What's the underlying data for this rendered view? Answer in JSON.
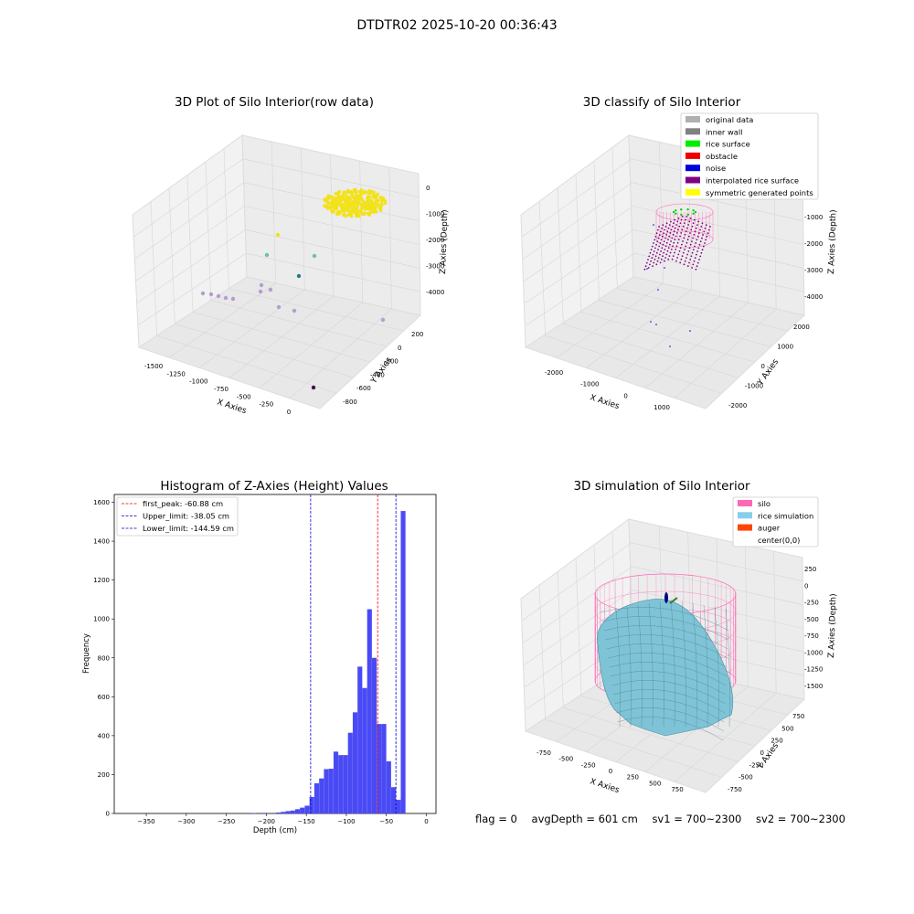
{
  "figure_title": "DTDTR02 2025-10-20 00:36:43",
  "chart_data": [
    {
      "type": "scatter",
      "subtitle": "3D Plot of Silo Interior(row data)",
      "xlabel": "X Axies",
      "ylabel": "Y Axies",
      "zlabel": "Z Axies (Depth)",
      "x_ticks": [
        "-1500",
        "-1250",
        "-1000",
        "-750",
        "-500",
        "-250",
        "0"
      ],
      "y_ticks": [
        "-800",
        "-600",
        "-400",
        "-200",
        "0",
        "200"
      ],
      "z_ticks": [
        "0",
        "-1000",
        "-2000",
        "-3000",
        "-4000"
      ],
      "description_colors": {
        "cluster": "#f2e21c",
        "outliers": [
          "#b79bd1",
          "#6fc0a0",
          "#2a788e",
          "#440154"
        ]
      }
    },
    {
      "type": "scatter",
      "subtitle": "3D classify of Silo Interior",
      "xlabel": "X Axies",
      "ylabel": "Y Axies",
      "zlabel": "Z Axies (Depth)",
      "x_ticks": [
        "-2000",
        "-1000",
        "0",
        "1000"
      ],
      "y_ticks": [
        "-2000",
        "-1000",
        "0",
        "1000",
        "2000"
      ],
      "z_ticks": [
        "0",
        "-1000",
        "-2000",
        "-3000",
        "-4000"
      ],
      "legend": [
        {
          "label": "original data",
          "color": "#b0b0b0"
        },
        {
          "label": "inner wall",
          "color": "#808080"
        },
        {
          "label": "rice surface",
          "color": "#00ee00"
        },
        {
          "label": "obstacle",
          "color": "#ee0000"
        },
        {
          "label": "noise",
          "color": "#0000dd"
        },
        {
          "label": "interpolated rice surface",
          "color": "#800080"
        },
        {
          "label": "symmetric generated points",
          "color": "#ffff00"
        }
      ]
    },
    {
      "type": "bar",
      "subtitle": "Histogram of Z-Axies (Height) Values",
      "xlabel": "Depth (cm)",
      "ylabel": "Frequency",
      "xlim": [
        -390,
        12
      ],
      "ylim": [
        0,
        1640
      ],
      "x_ticks": [
        -350,
        -300,
        -250,
        -200,
        -150,
        -100,
        -50,
        0
      ],
      "y_ticks": [
        0,
        200,
        400,
        600,
        800,
        1000,
        1200,
        1400,
        1600
      ],
      "bin_width": 5.9,
      "bars": [
        {
          "x": -219,
          "value": 2
        },
        {
          "x": -207,
          "value": 3
        },
        {
          "x": -188,
          "value": 5
        },
        {
          "x": -182,
          "value": 8
        },
        {
          "x": -176,
          "value": 12
        },
        {
          "x": -170,
          "value": 15
        },
        {
          "x": -164,
          "value": 22
        },
        {
          "x": -158,
          "value": 30
        },
        {
          "x": -152,
          "value": 40
        },
        {
          "x": -146,
          "value": 85
        },
        {
          "x": -140,
          "value": 155
        },
        {
          "x": -134,
          "value": 180
        },
        {
          "x": -128,
          "value": 228
        },
        {
          "x": -122,
          "value": 230
        },
        {
          "x": -116,
          "value": 318
        },
        {
          "x": -110,
          "value": 300
        },
        {
          "x": -104,
          "value": 300
        },
        {
          "x": -98,
          "value": 415
        },
        {
          "x": -92,
          "value": 520
        },
        {
          "x": -86,
          "value": 755
        },
        {
          "x": -80,
          "value": 645
        },
        {
          "x": -74,
          "value": 1050
        },
        {
          "x": -68,
          "value": 800
        },
        {
          "x": -62,
          "value": 460
        },
        {
          "x": -56,
          "value": 460
        },
        {
          "x": -50,
          "value": 268
        },
        {
          "x": -44,
          "value": 135
        },
        {
          "x": -38,
          "value": 70
        },
        {
          "x": -32,
          "value": 1555
        }
      ],
      "vlines": [
        {
          "label": "first_peak: -60.88 cm",
          "x": -60.88,
          "color": "#ee0000"
        },
        {
          "label": "Upper_limit: -38.05 cm",
          "x": -38.05,
          "color": "#0000cc"
        },
        {
          "label": "Lower_limit: -144.59 cm",
          "x": -144.59,
          "color": "#0000cc"
        }
      ],
      "bar_color": "#4a4af5"
    },
    {
      "type": "area",
      "subtitle": "3D simulation of Silo Interior",
      "xlabel": "X Axies",
      "ylabel": "Y Axies",
      "zlabel": "Z Axies (Depth)",
      "x_ticks": [
        "-750",
        "-500",
        "-250",
        "0",
        "250",
        "500",
        "750"
      ],
      "y_ticks": [
        "-750",
        "-500",
        "-250",
        "0",
        "250",
        "500",
        "750"
      ],
      "z_ticks": [
        "250",
        "0",
        "-250",
        "-500",
        "-750",
        "-1000",
        "-1250",
        "-1500"
      ],
      "legend": [
        {
          "label": "silo",
          "color": "#ff69b4"
        },
        {
          "label": "rice simulation",
          "color": "#87ceeb"
        },
        {
          "label": "auger",
          "color": "#ff4500"
        },
        {
          "label": "center(0,0)",
          "color": ""
        }
      ]
    }
  ],
  "footer": {
    "flag": "flag = 0",
    "avg_depth": "avgDepth = 601 cm",
    "sv1": "sv1 = 700~2300",
    "sv2": "sv2 = 700~2300"
  }
}
